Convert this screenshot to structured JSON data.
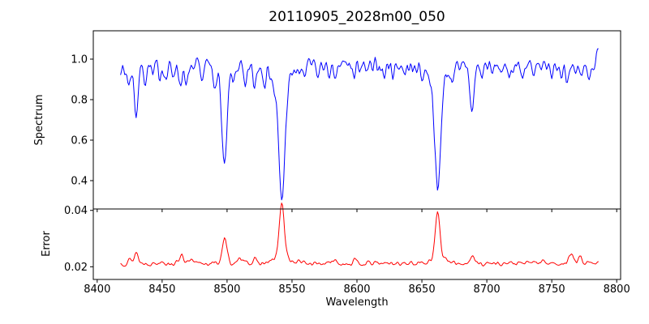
{
  "chart_data": {
    "type": "line",
    "title": "20110905_2028m00_050",
    "xlabel": "Wavelength",
    "background": "#ffffff",
    "axis_color": "#000000",
    "xlim": [
      8397,
      8803
    ],
    "x_data_range": [
      8418,
      8786
    ],
    "sample_step": 0.8,
    "x_ticks": [
      8400,
      8450,
      8500,
      8550,
      8600,
      8650,
      8700,
      8750,
      8800
    ],
    "lines_format": [
      "center_angstrom",
      "depth_or_height",
      "sigma_angstrom"
    ],
    "panels": [
      {
        "name": "spectrum",
        "ylabel": "Spectrum",
        "color": "#0000ff",
        "ylim": [
          0.26,
          1.14
        ],
        "y_ticks": [
          {
            "value": 0.4,
            "label": "0.4"
          },
          {
            "value": 0.6,
            "label": "0.6"
          },
          {
            "value": 0.8,
            "label": "0.8"
          },
          {
            "value": 1.0,
            "label": "1.0"
          }
        ],
        "baseline": 0.97,
        "noise_amplitude": 0.05,
        "noise_seed": 7,
        "line_mode": "absorption",
        "lines": [
          [
            8421,
            0.05,
            1.0
          ],
          [
            8424.5,
            0.1,
            1.1
          ],
          [
            8430,
            0.24,
            1.5
          ],
          [
            8437,
            0.07,
            1.1
          ],
          [
            8443,
            0.06,
            1.0
          ],
          [
            8448,
            0.05,
            1.0
          ],
          [
            8453,
            0.07,
            1.1
          ],
          [
            8458,
            0.05,
            1.0
          ],
          [
            8464,
            0.09,
            1.2
          ],
          [
            8468.5,
            0.12,
            1.3
          ],
          [
            8474,
            0.06,
            1.0
          ],
          [
            8481,
            0.07,
            1.1
          ],
          [
            8490,
            0.08,
            1.1
          ],
          [
            8498.02,
            0.45,
            1.9
          ],
          [
            8498.02,
            0.06,
            5.0
          ],
          [
            8505,
            0.07,
            1.0
          ],
          [
            8514,
            0.13,
            1.3
          ],
          [
            8521,
            0.11,
            1.2
          ],
          [
            8529,
            0.06,
            1.0
          ],
          [
            8536,
            0.05,
            1.0
          ],
          [
            8542.09,
            0.57,
            2.3
          ],
          [
            8542.09,
            0.1,
            6.5
          ],
          [
            8556,
            0.05,
            1.0
          ],
          [
            8560,
            0.05,
            1.0
          ],
          [
            8570,
            0.06,
            1.0
          ],
          [
            8578,
            0.05,
            1.0
          ],
          [
            8583,
            0.1,
            1.2
          ],
          [
            8598,
            0.07,
            1.0
          ],
          [
            8607,
            0.05,
            1.0
          ],
          [
            8612,
            0.04,
            0.9
          ],
          [
            8621,
            0.06,
            1.0
          ],
          [
            8628,
            0.04,
            0.9
          ],
          [
            8637,
            0.05,
            1.0
          ],
          [
            8643,
            0.04,
            0.9
          ],
          [
            8650,
            0.05,
            1.0
          ],
          [
            8662.14,
            0.54,
            2.1
          ],
          [
            8662.14,
            0.09,
            6.0
          ],
          [
            8673,
            0.06,
            1.0
          ],
          [
            8679,
            0.05,
            1.0
          ],
          [
            8688.6,
            0.24,
            1.5
          ],
          [
            8696,
            0.06,
            1.0
          ],
          [
            8704,
            0.05,
            1.0
          ],
          [
            8712,
            0.06,
            1.0
          ],
          [
            8718,
            0.05,
            1.0
          ],
          [
            8727,
            0.06,
            1.0
          ],
          [
            8736,
            0.07,
            1.1
          ],
          [
            8742,
            0.05,
            1.0
          ],
          [
            8750,
            0.06,
            1.0
          ],
          [
            8757,
            0.05,
            1.0
          ],
          [
            8762,
            0.07,
            1.0
          ],
          [
            8768,
            0.06,
            1.0
          ],
          [
            8773,
            0.07,
            1.0
          ],
          [
            8779,
            0.05,
            1.0
          ],
          [
            8788,
            -0.09,
            2.5
          ]
        ]
      },
      {
        "name": "error",
        "ylabel": "Error",
        "color": "#ff0000",
        "ylim": [
          0.0155,
          0.0405
        ],
        "y_ticks": [
          {
            "value": 0.02,
            "label": "0.02"
          },
          {
            "value": 0.04,
            "label": "0.04"
          }
        ],
        "baseline": 0.0212,
        "noise_amplitude": 0.0011,
        "noise_seed": 13,
        "line_mode": "emission",
        "lines": [
          [
            8424.5,
            0.0015,
            1.2
          ],
          [
            8430,
            0.004,
            1.5
          ],
          [
            8450,
            0.0012,
            1.2
          ],
          [
            8465,
            0.0035,
            1.5
          ],
          [
            8472,
            0.0012,
            1.2
          ],
          [
            8498.02,
            0.009,
            1.8
          ],
          [
            8510,
            0.0015,
            1.2
          ],
          [
            8514,
            0.0018,
            1.2
          ],
          [
            8521,
            0.0014,
            1.2
          ],
          [
            8542.09,
            0.0185,
            1.8
          ],
          [
            8542.09,
            0.003,
            5.0
          ],
          [
            8556,
            0.001,
            1.0
          ],
          [
            8583,
            0.0016,
            1.2
          ],
          [
            8598,
            0.001,
            1.0
          ],
          [
            8662.14,
            0.016,
            1.7
          ],
          [
            8662.14,
            0.0025,
            5.0
          ],
          [
            8688.6,
            0.003,
            1.4
          ],
          [
            8736,
            0.001,
            1.0
          ],
          [
            8744,
            0.0012,
            1.1
          ],
          [
            8765,
            0.0035,
            1.6
          ],
          [
            8772,
            0.0025,
            1.3
          ]
        ]
      }
    ]
  }
}
